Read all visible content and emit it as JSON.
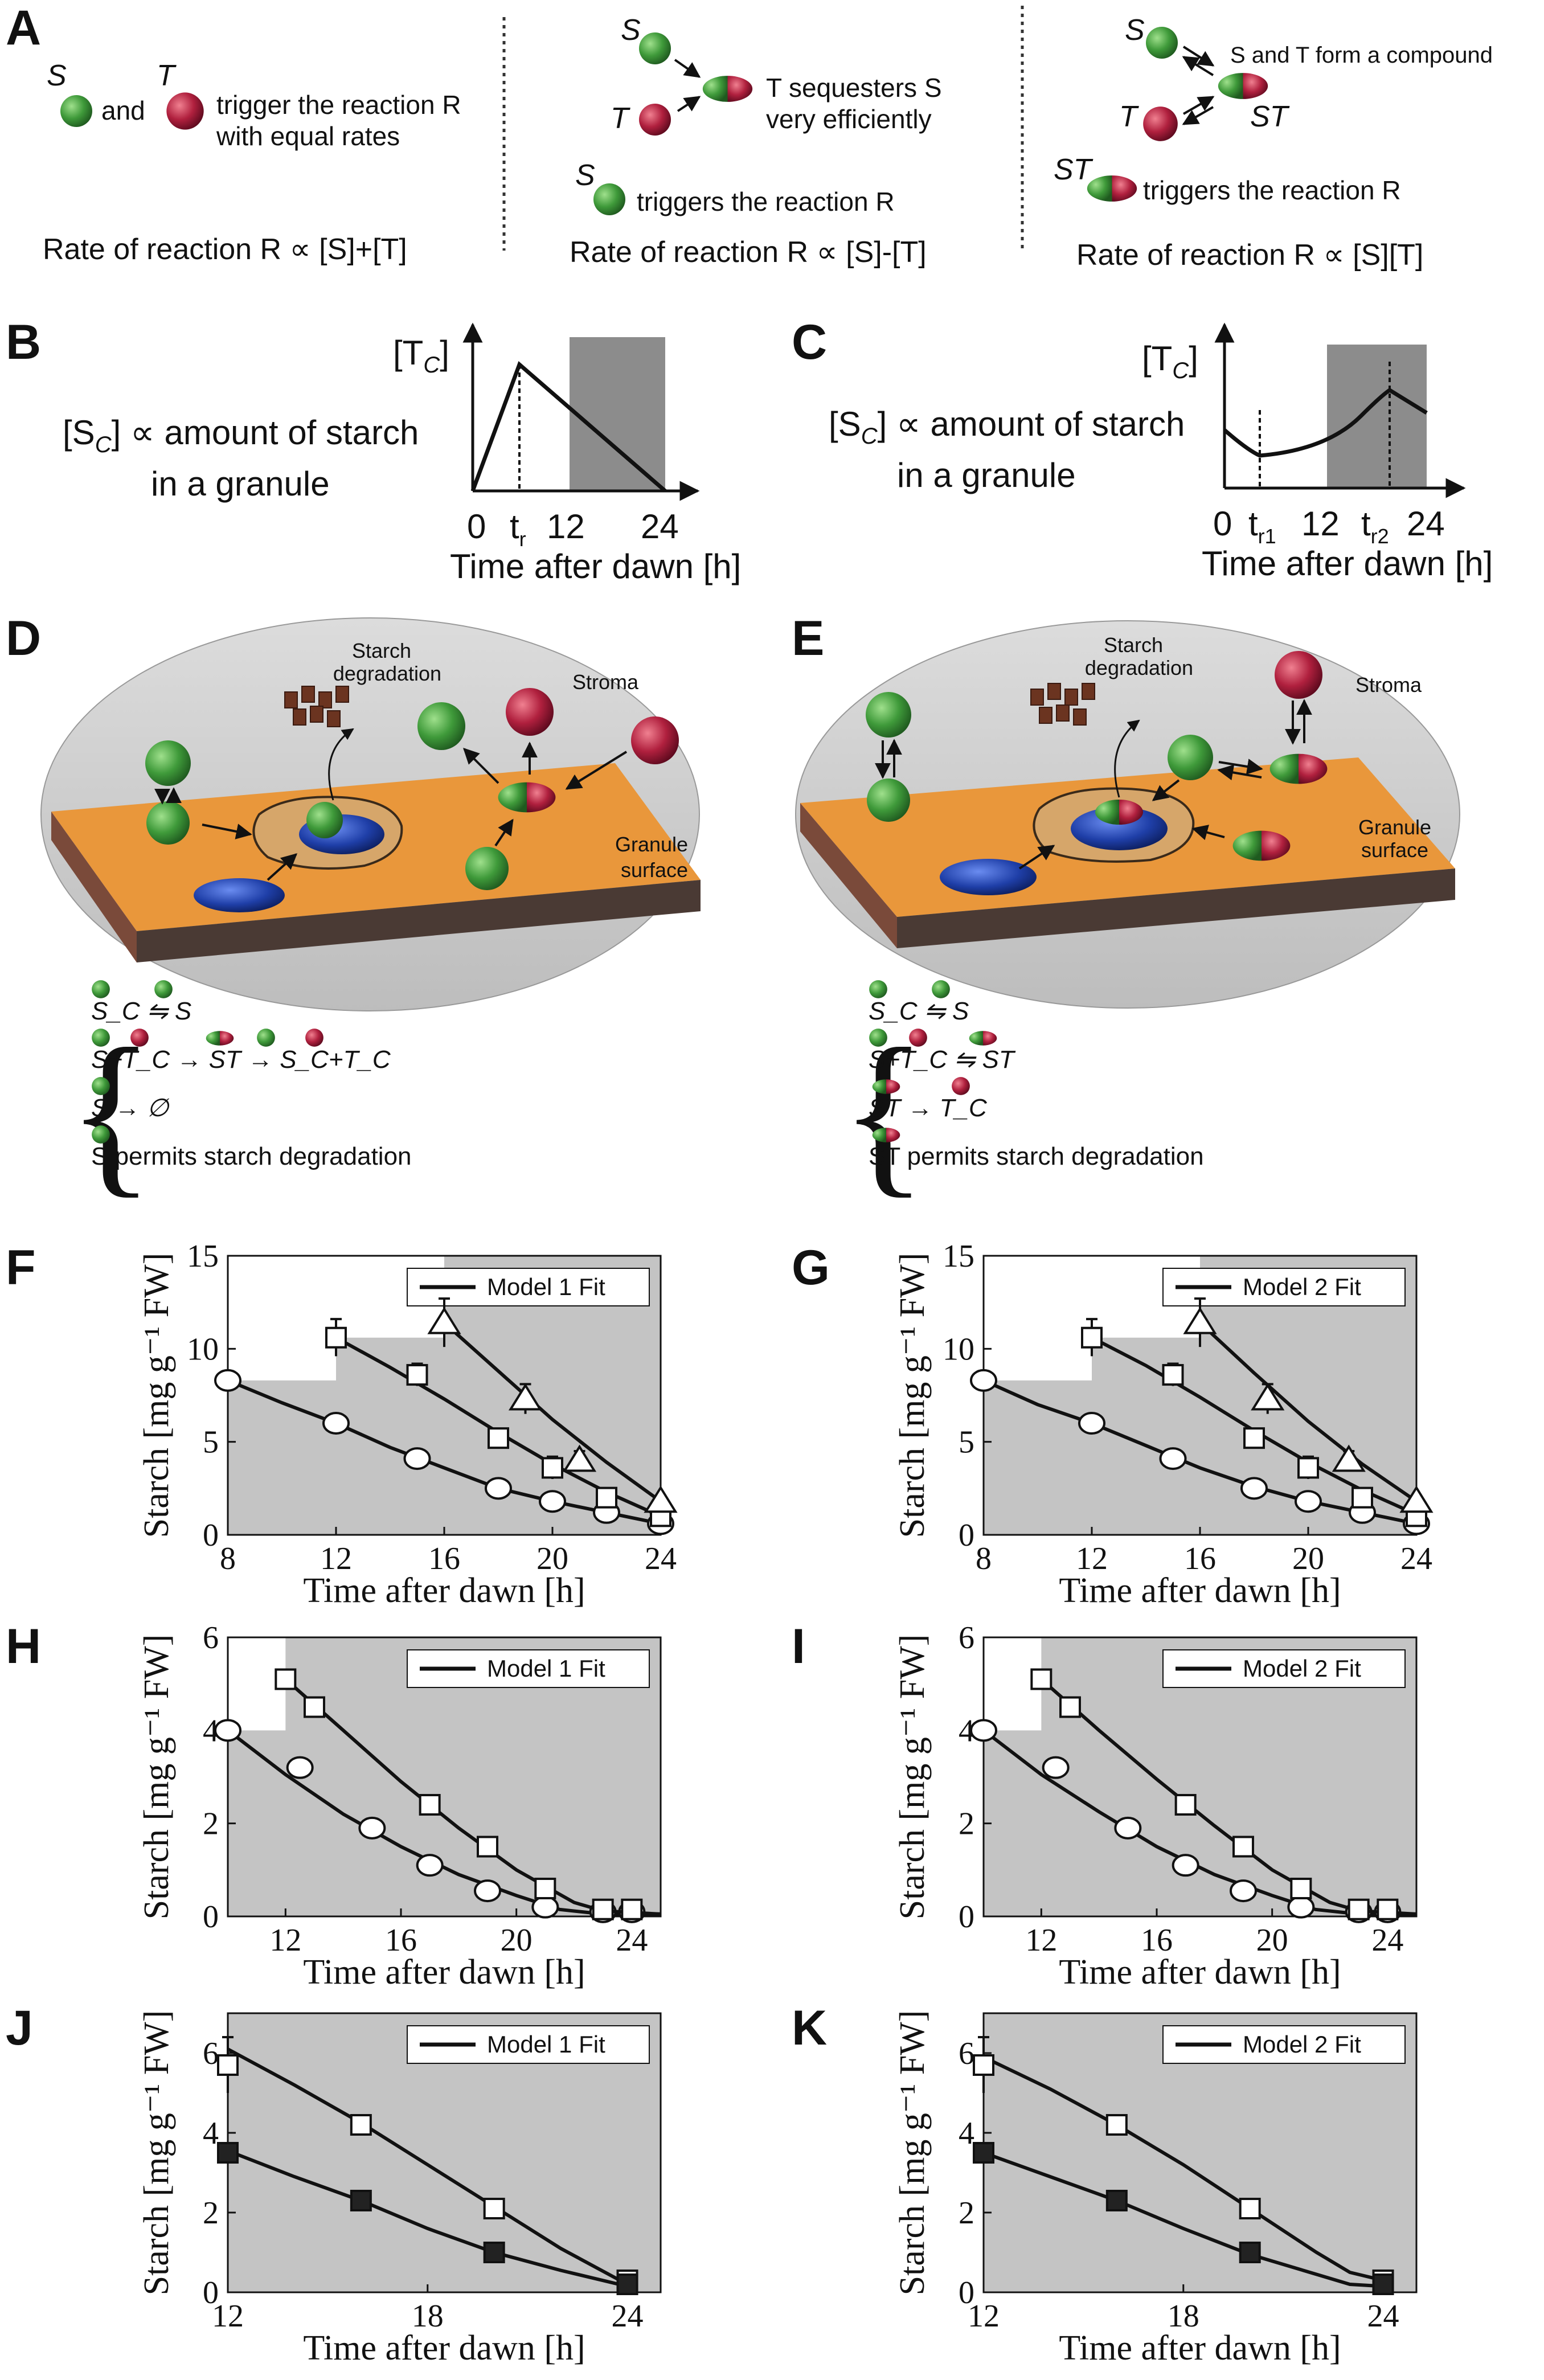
{
  "colors": {
    "green": "#3f9a3a",
    "red": "#b0203e",
    "blue": "#1f3fa8",
    "orange": "#e9973b",
    "grey": "#c8c8c8",
    "dark": "#707070"
  },
  "panelA": {
    "label": "A",
    "col1": {
      "s": "S",
      "t": "T",
      "and": "and",
      "line1": "trigger the reaction R",
      "line2": "with equal rates",
      "rate": "Rate of reaction R ∝ [S]+[T]"
    },
    "col2": {
      "s": "S",
      "t": "T",
      "line1": "T  sequesters S",
      "line2": "very efficiently",
      "s2": "S",
      "trig": "triggers the reaction  R",
      "rate": "Rate of reaction R ∝ [S]-[T]"
    },
    "col3": {
      "s": "S",
      "t": "T",
      "compound": "S and T form a compound",
      "st": "ST",
      "st2": "ST",
      "trig": "triggers the reaction R",
      "rate": "Rate of reaction R ∝ [S][T]"
    }
  },
  "panelB": {
    "label": "B",
    "sc_text": "[S",
    "sc_sub": "C",
    "sc_rest": "] ∝ amount of starch",
    "line2": "in a granule",
    "ylab": "[T",
    "ysub": "C",
    "yclose": "]",
    "ticks": [
      "0",
      "t",
      "12",
      "24"
    ],
    "tsub": "r",
    "xlab": "Time after dawn [h]"
  },
  "panelC": {
    "label": "C",
    "sc_text": "[S",
    "sc_sub": "C",
    "sc_rest": "] ∝ amount of starch",
    "line2": "in a granule",
    "ylab": "[T",
    "ysub": "C",
    "yclose": "]",
    "ticks": [
      "0",
      "t",
      "12",
      "t",
      "24"
    ],
    "tsub1": "r1",
    "tsub2": "r2",
    "xlab": "Time after dawn [h]"
  },
  "panelD": {
    "label": "D",
    "starch": "Starch",
    "degradation": "degradation",
    "stroma": "Stroma",
    "granule": "Granule",
    "surface": "surface",
    "eq1": "S_C ⇋ S",
    "eq2": "S+T_C → ST → S_C+T_C",
    "eq3": "S → ∅",
    "eq4": "S permits starch degradation"
  },
  "panelE": {
    "label": "E",
    "starch": "Starch",
    "degradation": "degradation",
    "stroma": "Stroma",
    "granule": "Granule",
    "surface": "surface",
    "eq1": "S_C ⇋ S",
    "eq2": "S+T_C ⇋ ST",
    "eq3": "ST → T_C",
    "eq4": "ST permits starch degradation"
  },
  "plots": {
    "ylabel": "Starch [mg g⁻¹ FW]",
    "xlabel": "Time after dawn [h]",
    "F": {
      "label": "F",
      "legend": "Model 1 Fit"
    },
    "G": {
      "label": "G",
      "legend": "Model 2 Fit"
    },
    "H": {
      "label": "H",
      "legend": "Model 1 Fit"
    },
    "I": {
      "label": "I",
      "legend": "Model 2 Fit"
    },
    "J": {
      "label": "J",
      "legend": "Model 1 Fit"
    },
    "K": {
      "label": "K",
      "legend": "Model 2 Fit"
    }
  },
  "chart_data": [
    {
      "id": "F",
      "type": "line",
      "xlim": [
        8,
        24
      ],
      "ylim": [
        0,
        15
      ],
      "xticks": [
        8,
        12,
        16,
        20,
        24
      ],
      "yticks": [
        0,
        5,
        10,
        15
      ],
      "darkness": [
        [
          8,
          8.3
        ],
        [
          12,
          10.6
        ],
        [
          16,
          15
        ]
      ],
      "series": [
        {
          "marker": "circle",
          "x": [
            8,
            12,
            15,
            18,
            20,
            22,
            24
          ],
          "y": [
            8.3,
            6.0,
            4.1,
            2.5,
            1.8,
            1.2,
            0.6
          ],
          "fit": [
            [
              8,
              8.3
            ],
            [
              10,
              7.1
            ],
            [
              12,
              6.0
            ],
            [
              14,
              4.7
            ],
            [
              16,
              3.6
            ],
            [
              18,
              2.5
            ],
            [
              20,
              1.8
            ],
            [
              22,
              1.2
            ],
            [
              24,
              0.6
            ]
          ]
        },
        {
          "marker": "square",
          "x": [
            12,
            15,
            18,
            20,
            22,
            24
          ],
          "y": [
            10.6,
            8.6,
            5.2,
            3.6,
            2.0,
            1.0
          ],
          "err": [
            1.0,
            0.6,
            0.4,
            0.6,
            0.3,
            0.2
          ],
          "fit": [
            [
              12,
              10.6
            ],
            [
              14,
              9.0
            ],
            [
              16,
              7.3
            ],
            [
              18,
              5.5
            ],
            [
              20,
              3.8
            ],
            [
              22,
              2.3
            ],
            [
              24,
              1.0
            ]
          ]
        },
        {
          "marker": "triangle",
          "x": [
            16,
            19,
            21,
            24
          ],
          "y": [
            11.4,
            7.3,
            4.0,
            1.8
          ],
          "err": [
            1.3,
            0.8,
            0.5,
            0.3
          ],
          "fit": [
            [
              16,
              11.4
            ],
            [
              18,
              8.8
            ],
            [
              20,
              6.2
            ],
            [
              22,
              3.9
            ],
            [
              24,
              1.8
            ]
          ]
        }
      ]
    },
    {
      "id": "G",
      "type": "line",
      "xlim": [
        8,
        24
      ],
      "ylim": [
        0,
        15
      ],
      "xticks": [
        8,
        12,
        16,
        20,
        24
      ],
      "yticks": [
        0,
        5,
        10,
        15
      ],
      "darkness": [
        [
          8,
          8.3
        ],
        [
          12,
          10.6
        ],
        [
          16,
          15
        ]
      ],
      "series": [
        {
          "marker": "circle",
          "x": [
            8,
            12,
            15,
            18,
            20,
            22,
            24
          ],
          "y": [
            8.3,
            6.0,
            4.1,
            2.5,
            1.8,
            1.2,
            0.6
          ],
          "fit": [
            [
              8,
              8.3
            ],
            [
              10,
              7.0
            ],
            [
              12,
              6.0
            ],
            [
              14,
              4.8
            ],
            [
              16,
              3.6
            ],
            [
              18,
              2.6
            ],
            [
              20,
              1.8
            ],
            [
              22,
              1.2
            ],
            [
              24,
              0.6
            ]
          ]
        },
        {
          "marker": "square",
          "x": [
            12,
            15,
            18,
            20,
            22,
            24
          ],
          "y": [
            10.6,
            8.6,
            5.2,
            3.6,
            2.0,
            1.0
          ],
          "err": [
            1.0,
            0.6,
            0.4,
            0.6,
            0.3,
            0.2
          ],
          "fit": [
            [
              12,
              10.6
            ],
            [
              14,
              9.1
            ],
            [
              16,
              7.4
            ],
            [
              18,
              5.6
            ],
            [
              20,
              3.9
            ],
            [
              22,
              2.4
            ],
            [
              24,
              1.1
            ]
          ]
        },
        {
          "marker": "triangle",
          "x": [
            16,
            18.5,
            21.5,
            24
          ],
          "y": [
            11.4,
            7.3,
            4.0,
            1.8
          ],
          "err": [
            1.3,
            0.8,
            0.5,
            0.3
          ],
          "fit": [
            [
              16,
              11.4
            ],
            [
              18,
              8.7
            ],
            [
              20,
              6.1
            ],
            [
              22,
              3.8
            ],
            [
              24,
              1.8
            ]
          ]
        }
      ]
    },
    {
      "id": "H",
      "type": "line",
      "xlim": [
        10,
        25
      ],
      "ylim": [
        0,
        6
      ],
      "xticks": [
        12,
        16,
        20,
        24
      ],
      "yticks": [
        0,
        2,
        4,
        6
      ],
      "darkness": [
        [
          10,
          4.0
        ],
        [
          12,
          6
        ]
      ],
      "series": [
        {
          "marker": "circle",
          "x": [
            10,
            12.5,
            15,
            17,
            19,
            21,
            23,
            24
          ],
          "y": [
            4.0,
            3.2,
            1.9,
            1.1,
            0.55,
            0.2,
            0.1,
            0.1
          ],
          "fit": [
            [
              10,
              4.0
            ],
            [
              12,
              3.05
            ],
            [
              14,
              2.2
            ],
            [
              16,
              1.5
            ],
            [
              18,
              0.9
            ],
            [
              20,
              0.45
            ],
            [
              21.5,
              0.15
            ],
            [
              23,
              0.05
            ],
            [
              25,
              0.05
            ]
          ]
        },
        {
          "marker": "square",
          "x": [
            12,
            13,
            17,
            19,
            21,
            23,
            24
          ],
          "y": [
            5.1,
            4.5,
            2.4,
            1.5,
            0.6,
            0.15,
            0.15
          ],
          "err": [
            0.2,
            0.1,
            0.1,
            0.1,
            0.1,
            0.05,
            0.05
          ],
          "fit": [
            [
              12,
              5.1
            ],
            [
              14,
              4.0
            ],
            [
              16,
              2.9
            ],
            [
              18,
              1.9
            ],
            [
              20,
              1.0
            ],
            [
              22,
              0.3
            ],
            [
              23,
              0.12
            ],
            [
              25,
              0.05
            ]
          ]
        }
      ]
    },
    {
      "id": "I",
      "type": "line",
      "xlim": [
        10,
        25
      ],
      "ylim": [
        0,
        6
      ],
      "xticks": [
        12,
        16,
        20,
        24
      ],
      "yticks": [
        0,
        2,
        4,
        6
      ],
      "darkness": [
        [
          10,
          4.0
        ],
        [
          12,
          6
        ]
      ],
      "series": [
        {
          "marker": "circle",
          "x": [
            10,
            12.5,
            15,
            17,
            19,
            21,
            23,
            24
          ],
          "y": [
            4.0,
            3.2,
            1.9,
            1.1,
            0.55,
            0.2,
            0.1,
            0.1
          ],
          "fit": [
            [
              10,
              4.0
            ],
            [
              12,
              3.05
            ],
            [
              14,
              2.25
            ],
            [
              16,
              1.5
            ],
            [
              18,
              0.9
            ],
            [
              20,
              0.45
            ],
            [
              21.5,
              0.15
            ],
            [
              23,
              0.05
            ],
            [
              25,
              0.05
            ]
          ]
        },
        {
          "marker": "square",
          "x": [
            12,
            13,
            17,
            19,
            21,
            23,
            24
          ],
          "y": [
            5.1,
            4.5,
            2.4,
            1.5,
            0.6,
            0.15,
            0.15
          ],
          "err": [
            0.2,
            0.1,
            0.1,
            0.1,
            0.1,
            0.05,
            0.05
          ],
          "fit": [
            [
              12,
              5.1
            ],
            [
              14,
              4.0
            ],
            [
              16,
              2.95
            ],
            [
              18,
              1.95
            ],
            [
              20,
              1.0
            ],
            [
              22,
              0.3
            ],
            [
              23,
              0.12
            ],
            [
              25,
              0.05
            ]
          ]
        }
      ]
    },
    {
      "id": "J",
      "type": "line",
      "xlim": [
        12,
        25
      ],
      "ylim": [
        0,
        7
      ],
      "xticks": [
        12,
        18,
        24
      ],
      "yticks": [
        0,
        2,
        4,
        6
      ],
      "darkness": [],
      "series": [
        {
          "marker": "square-open",
          "x": [
            12,
            16,
            20,
            24
          ],
          "y": [
            5.7,
            4.2,
            2.1,
            0.3
          ],
          "err": [
            0.7,
            0.1,
            0.1,
            0.05
          ],
          "fit": [
            [
              12,
              6.1
            ],
            [
              14,
              5.2
            ],
            [
              16,
              4.25
            ],
            [
              18,
              3.2
            ],
            [
              20,
              2.15
            ],
            [
              22,
              1.1
            ],
            [
              24,
              0.2
            ]
          ]
        },
        {
          "marker": "square-filled",
          "x": [
            12,
            16,
            20,
            24
          ],
          "y": [
            3.5,
            2.3,
            1.0,
            0.2
          ],
          "fit": [
            [
              12,
              3.55
            ],
            [
              14,
              2.9
            ],
            [
              16,
              2.3
            ],
            [
              18,
              1.6
            ],
            [
              20,
              1.0
            ],
            [
              22,
              0.55
            ],
            [
              24,
              0.15
            ]
          ]
        }
      ]
    },
    {
      "id": "K",
      "type": "line",
      "xlim": [
        12,
        25
      ],
      "ylim": [
        0,
        7
      ],
      "xticks": [
        12,
        18,
        24
      ],
      "yticks": [
        0,
        2,
        4,
        6
      ],
      "darkness": [],
      "series": [
        {
          "marker": "square-open",
          "x": [
            12,
            16,
            20,
            24
          ],
          "y": [
            5.7,
            4.2,
            2.1,
            0.3
          ],
          "err": [
            0.7,
            0.1,
            0.1,
            0.05
          ],
          "fit": [
            [
              12,
              5.9
            ],
            [
              14,
              5.1
            ],
            [
              16,
              4.2
            ],
            [
              18,
              3.2
            ],
            [
              20,
              2.1
            ],
            [
              22,
              1.0
            ],
            [
              23,
              0.5
            ],
            [
              24,
              0.3
            ]
          ]
        },
        {
          "marker": "square-filled",
          "x": [
            12,
            16,
            20,
            24
          ],
          "y": [
            3.5,
            2.3,
            1.0,
            0.2
          ],
          "fit": [
            [
              12,
              3.5
            ],
            [
              14,
              2.9
            ],
            [
              16,
              2.3
            ],
            [
              18,
              1.6
            ],
            [
              20,
              0.95
            ],
            [
              22,
              0.45
            ],
            [
              23,
              0.2
            ],
            [
              24,
              0.15
            ]
          ]
        }
      ]
    }
  ]
}
